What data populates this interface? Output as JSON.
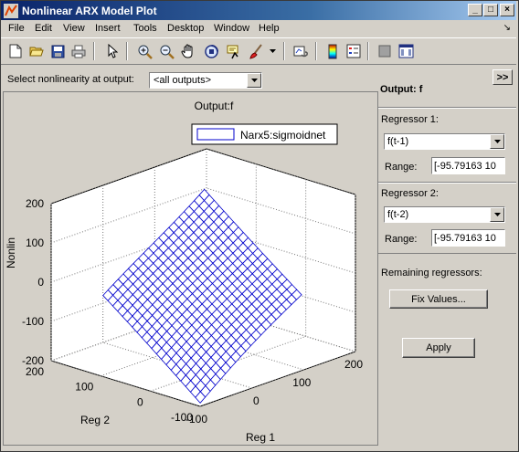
{
  "window": {
    "title": "Nonlinear ARX Model Plot",
    "controls": {
      "minimize": "_",
      "maximize": "□",
      "close": "×"
    }
  },
  "menubar": {
    "items": [
      "File",
      "Edit",
      "View",
      "Insert",
      "Tools",
      "Desktop",
      "Window",
      "Help"
    ],
    "dock_arrow": "↘"
  },
  "toolbar": {
    "tools": [
      "new-figure-icon",
      "open-icon",
      "save-icon",
      "print-icon",
      "pointer-icon",
      "zoom-in-icon",
      "zoom-out-icon",
      "pan-hand-icon",
      "rotate-3d-icon",
      "data-cursor-icon",
      "brush-icon",
      "link-plot-icon",
      "colorbar-icon",
      "legend-icon",
      "hide-plot-tools-icon",
      "show-plot-tools-icon"
    ]
  },
  "selector": {
    "label": "Select nonlinearity at output:",
    "value": "<all outputs>"
  },
  "plot": {
    "title": "Output:f",
    "legend": "Narx5:sigmoidnet",
    "zlabel": "Nonlin",
    "xlabel": "Reg 1",
    "ylabel": "Reg 2",
    "surface_color": "#0000cc"
  },
  "chart_data": {
    "type": "surface",
    "title": "Output:f",
    "series": [
      {
        "name": "Narx5:sigmoidnet"
      }
    ],
    "xlabel": "Reg 1",
    "ylabel": "Reg 2",
    "zlabel": "Nonlin",
    "xlim": [
      -100,
      200
    ],
    "ylim": [
      -100,
      200
    ],
    "zlim": [
      -200,
      200
    ],
    "x_ticks": [
      "-100",
      "0",
      "100",
      "200"
    ],
    "y_ticks": [
      "-100",
      "0",
      "100",
      "200"
    ],
    "z_ticks": [
      "200",
      "100",
      "0",
      "-100",
      "-200"
    ],
    "grid": true,
    "surface_x_range": [
      -95.79163,
      100
    ],
    "surface_y_range": [
      -95.79163,
      100
    ],
    "z_at_corners": {
      "xmin_ymin": -195,
      "xmax_ymin": -10,
      "xmin_ymax": -5,
      "xmax_ymax": 190
    }
  },
  "panel": {
    "collapse_label": ">>",
    "output_heading": "Output: f",
    "regressor1": {
      "label": "Regressor 1:",
      "value": "f(t-1)",
      "range_label": "Range:",
      "range_value": "[-95.79163     10"
    },
    "regressor2": {
      "label": "Regressor 2:",
      "value": "f(t-2)",
      "range_label": "Range:",
      "range_value": "[-95.79163     10"
    },
    "remaining_label": "Remaining regressors:",
    "fix_values_label": "Fix Values...",
    "apply_label": "Apply"
  }
}
